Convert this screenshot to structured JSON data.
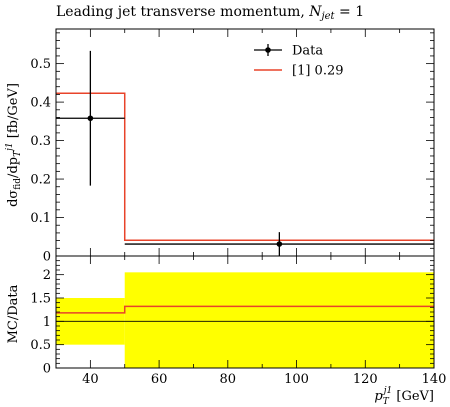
{
  "chart_data": {
    "type": "line",
    "title": "Leading jet transverse momentum, N_jet = 1",
    "title_parts": {
      "main": "Leading jet transverse momentum, ",
      "var": "N",
      "sub": "jet",
      "rest": " = 1"
    },
    "xlabel": "p_T^j1 [GeV]",
    "xlabel_parts": {
      "var": "p",
      "sub": "T",
      "sup": "j1",
      "unit": " [GeV]"
    },
    "ylabel_main": "dσ_fid/dp_T^j1 [fb/GeV]",
    "ylabel_main_parts": {
      "d1": "dσ",
      "sub1": "fid",
      "slash": "/dp",
      "sub2": "T",
      "sup2": "j1",
      "unit": " [fb/GeV]"
    },
    "ylabel_ratio": "MC/Data",
    "xlim": [
      30,
      140
    ],
    "ylim_main": [
      0,
      0.59
    ],
    "ylim_ratio": [
      0,
      2.4
    ],
    "x_ticks": [
      40,
      60,
      80,
      100,
      120,
      140
    ],
    "y_ticks_main": [
      0,
      0.1,
      0.2,
      0.3,
      0.4,
      0.5
    ],
    "y_ticks_main_labels": [
      "0",
      "0.1",
      "0.2",
      "0.3",
      "0.4",
      "0.5"
    ],
    "y_ticks_ratio": [
      0,
      0.5,
      1,
      1.5,
      2
    ],
    "y_ticks_ratio_labels": [
      "0",
      "0.5",
      "1",
      "1.5",
      "2"
    ],
    "bins": [
      [
        30,
        50
      ],
      [
        50,
        140
      ]
    ],
    "series": [
      {
        "name": "Data",
        "color": "#000000",
        "points": [
          {
            "x": 40,
            "y": 0.358,
            "ylow": 0.183,
            "yhigh": 0.533
          },
          {
            "x": 95,
            "y": 0.031,
            "ylow": 0.0,
            "yhigh": 0.062
          }
        ]
      },
      {
        "name": "[1] 0.29",
        "color": "#e8432a",
        "values": [
          0.423,
          0.041
        ]
      }
    ],
    "ratio": {
      "band_color": "#ffff00",
      "band": [
        {
          "low": 0.5,
          "high": 1.5
        },
        {
          "low": 0.0,
          "high": 2.05
        }
      ],
      "mc_over_data": [
        1.18,
        1.32
      ],
      "reference": 1.0
    },
    "legend": {
      "placement": "top-right"
    }
  }
}
